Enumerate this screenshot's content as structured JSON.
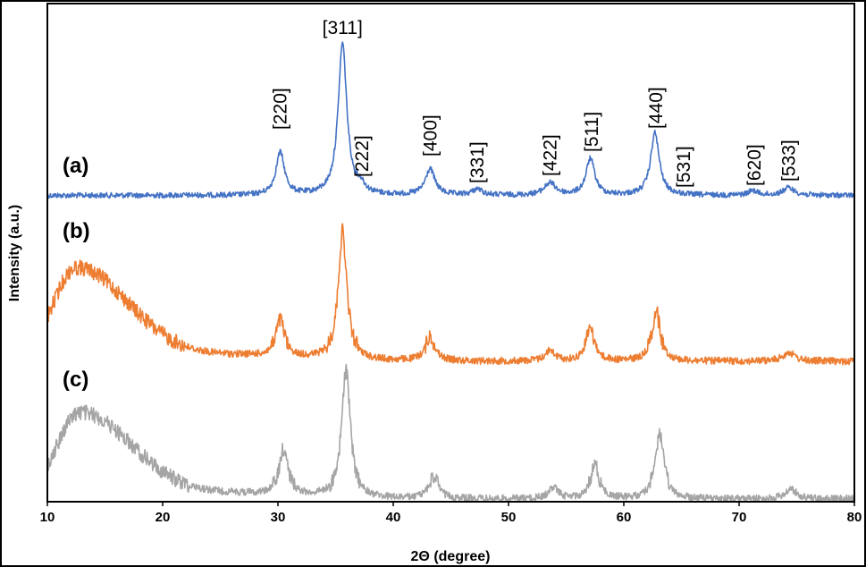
{
  "chart_data": {
    "type": "line",
    "title": "",
    "xlabel": "2Θ (degree)",
    "ylabel": "Intensity (a.u.)",
    "xlim": [
      10,
      80
    ],
    "xticks": [
      10,
      20,
      30,
      40,
      50,
      60,
      70,
      80
    ],
    "grid": false,
    "legend": "none",
    "peak_labels": [
      {
        "text": "[220]",
        "x": 30.2
      },
      {
        "text": "[311]",
        "x": 35.6
      },
      {
        "text": "[222]",
        "x": 37.3
      },
      {
        "text": "[400]",
        "x": 43.2
      },
      {
        "text": "[331]",
        "x": 47.3
      },
      {
        "text": "[422]",
        "x": 53.6
      },
      {
        "text": "[511]",
        "x": 57.2
      },
      {
        "text": "[440]",
        "x": 62.8
      },
      {
        "text": "[531]",
        "x": 65.2
      },
      {
        "text": "[620]",
        "x": 71.3
      },
      {
        "text": "[533]",
        "x": 74.3
      }
    ],
    "series": [
      {
        "name": "(a)",
        "color": "#4472C4",
        "baseline": 0.02,
        "broad_hump": null,
        "peaks": [
          {
            "x": 30.2,
            "height": 0.28,
            "width": 0.45
          },
          {
            "x": 35.6,
            "height": 1.0,
            "width": 0.45
          },
          {
            "x": 37.2,
            "height": 0.05,
            "width": 0.4
          },
          {
            "x": 43.2,
            "height": 0.17,
            "width": 0.5
          },
          {
            "x": 47.3,
            "height": 0.04,
            "width": 0.5
          },
          {
            "x": 53.6,
            "height": 0.08,
            "width": 0.6
          },
          {
            "x": 57.1,
            "height": 0.24,
            "width": 0.45
          },
          {
            "x": 62.7,
            "height": 0.41,
            "width": 0.45
          },
          {
            "x": 71.2,
            "height": 0.03,
            "width": 0.5
          },
          {
            "x": 74.3,
            "height": 0.05,
            "width": 0.6
          }
        ]
      },
      {
        "name": "(b)",
        "color": "#ED7D31",
        "baseline": 0.0,
        "broad_hump": {
          "center": 12.5,
          "height": 0.62,
          "width": 4.5
        },
        "peaks": [
          {
            "x": 30.2,
            "height": 0.24,
            "width": 0.45
          },
          {
            "x": 35.6,
            "height": 0.85,
            "width": 0.45
          },
          {
            "x": 43.2,
            "height": 0.16,
            "width": 0.5
          },
          {
            "x": 53.6,
            "height": 0.07,
            "width": 0.5
          },
          {
            "x": 57.1,
            "height": 0.22,
            "width": 0.45
          },
          {
            "x": 62.8,
            "height": 0.33,
            "width": 0.45
          },
          {
            "x": 74.3,
            "height": 0.06,
            "width": 0.6
          }
        ]
      },
      {
        "name": "(c)",
        "color": "#A5A5A5",
        "baseline": 0.0,
        "broad_hump": {
          "center": 12.8,
          "height": 0.62,
          "width": 4.5
        },
        "peaks": [
          {
            "x": 30.5,
            "height": 0.33,
            "width": 0.45
          },
          {
            "x": 35.9,
            "height": 0.92,
            "width": 0.45
          },
          {
            "x": 43.5,
            "height": 0.16,
            "width": 0.5
          },
          {
            "x": 53.9,
            "height": 0.08,
            "width": 0.5
          },
          {
            "x": 57.5,
            "height": 0.25,
            "width": 0.45
          },
          {
            "x": 63.1,
            "height": 0.47,
            "width": 0.45
          },
          {
            "x": 74.5,
            "height": 0.07,
            "width": 0.6
          }
        ]
      }
    ]
  }
}
